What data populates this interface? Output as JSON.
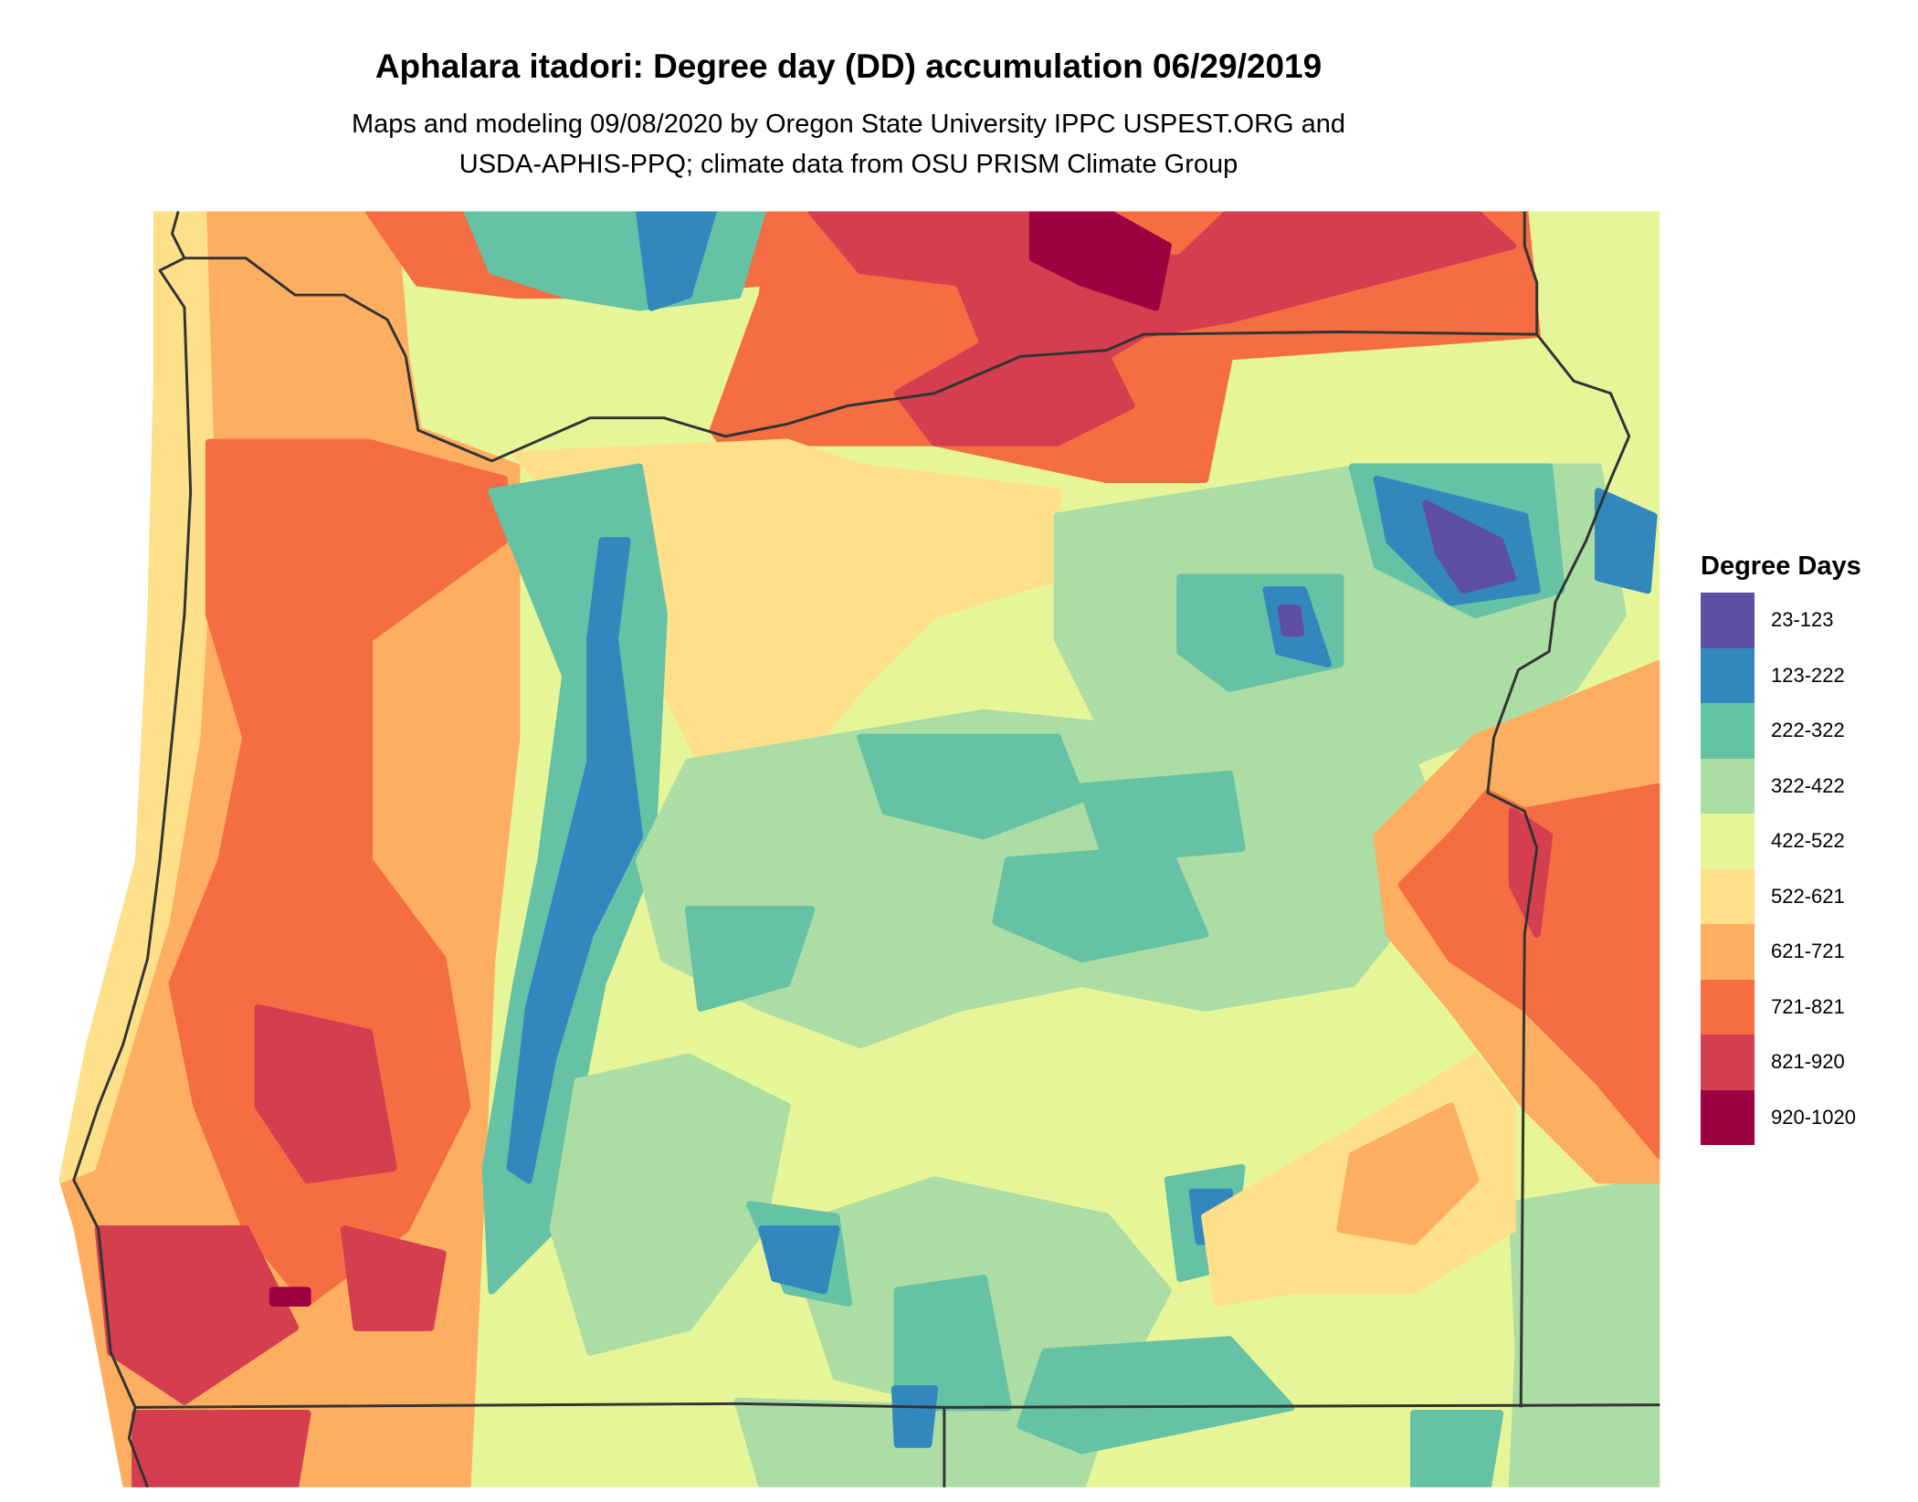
{
  "title": "Aphalara itadori: Degree day (DD) accumulation 06/29/2019",
  "subtitle_lines": [
    "Maps and modeling 09/08/2020 by Oregon State University IPPC USPEST.ORG and",
    "USDA-APHIS-PPQ; climate data from OSU PRISM Climate Group"
  ],
  "legend": {
    "title": "Degree Days",
    "items": [
      {
        "label": "23-123",
        "color": "#5e4fa2"
      },
      {
        "label": "123-222",
        "color": "#3288bd"
      },
      {
        "label": "222-322",
        "color": "#66c2a5"
      },
      {
        "label": "322-422",
        "color": "#abdda4"
      },
      {
        "label": "422-522",
        "color": "#e6f598"
      },
      {
        "label": "522-621",
        "color": "#fee08b"
      },
      {
        "label": "621-721",
        "color": "#fdae61"
      },
      {
        "label": "721-821",
        "color": "#f46d43"
      },
      {
        "label": "821-920",
        "color": "#d53e4f"
      },
      {
        "label": "920-1020",
        "color": "#9e0142"
      }
    ]
  },
  "border_color": "#333333"
}
